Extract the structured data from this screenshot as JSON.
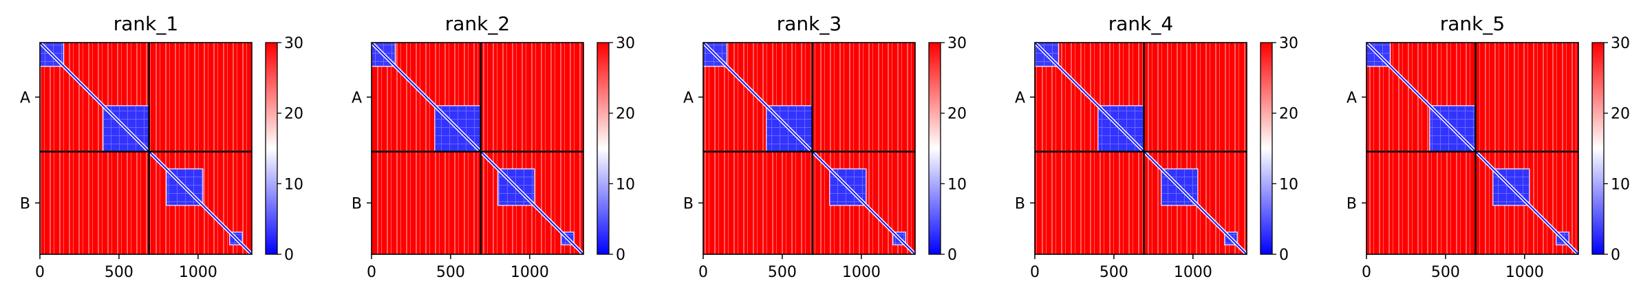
{
  "chart_data": {
    "type": "heatmap",
    "figure": "PAE heatmaps per model rank",
    "panels": [
      {
        "title": "rank_1"
      },
      {
        "title": "rank_2"
      },
      {
        "title": "rank_3"
      },
      {
        "title": "rank_4"
      },
      {
        "title": "rank_5"
      }
    ],
    "x_ticks": [
      0,
      500,
      1000
    ],
    "x_range": [
      0,
      1340
    ],
    "y_range": [
      0,
      1340
    ],
    "chain_boundary": 690,
    "chains": [
      {
        "label": "A",
        "start": 0,
        "end": 690
      },
      {
        "label": "B",
        "start": 690,
        "end": 1340
      }
    ],
    "colorbar": {
      "ticks": [
        0,
        10,
        20,
        30
      ],
      "min": 0,
      "max": 30,
      "colormap": "bwr"
    },
    "low_error_blocks": [
      {
        "x0": 0,
        "x1": 150,
        "y0": 0,
        "y1": 150,
        "value": 5
      },
      {
        "x0": 400,
        "x1": 690,
        "y0": 400,
        "y1": 690,
        "value": 4
      },
      {
        "x0": 800,
        "x1": 1030,
        "y0": 800,
        "y1": 1030,
        "value": 4
      },
      {
        "x0": 1200,
        "x1": 1280,
        "y0": 1200,
        "y1": 1280,
        "value": 4
      }
    ],
    "colors": {
      "high": "#ff0000",
      "low": "#0000ff",
      "mid": "#ffffff"
    }
  }
}
